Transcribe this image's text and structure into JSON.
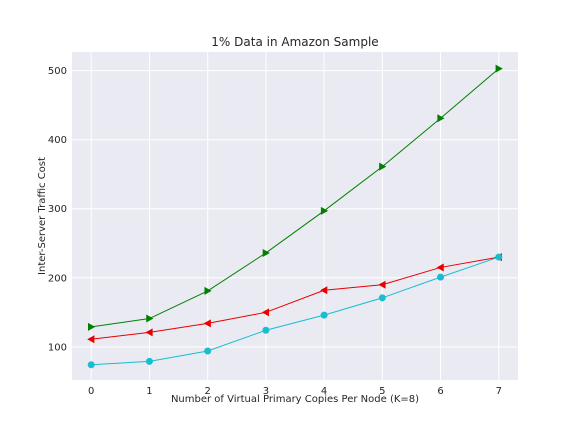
{
  "chart_data": {
    "type": "line",
    "title": "1% Data in Amazon Sample",
    "xlabel": "Number of Virtual Primary Copies Per Node (K=8)",
    "ylabel": "Inter-Server Traffic Cost",
    "x": [
      0,
      1,
      2,
      3,
      4,
      5,
      6,
      7
    ],
    "xlim": [
      -0.33,
      7.33
    ],
    "ylim": [
      52,
      527
    ],
    "xticks": [
      0,
      1,
      2,
      3,
      4,
      5,
      6,
      7
    ],
    "yticks": [
      100,
      200,
      300,
      400,
      500
    ],
    "grid": true,
    "series": [
      {
        "color": "#008000",
        "marker": "triangle-right",
        "values": [
          129,
          141,
          181,
          236,
          297,
          361,
          431,
          503
        ]
      },
      {
        "color": "#e80000",
        "marker": "triangle-left",
        "values": [
          111,
          121,
          134,
          150,
          182,
          190,
          215,
          230
        ]
      },
      {
        "color": "#17becf",
        "marker": "circle",
        "values": [
          74,
          79,
          94,
          124,
          146,
          171,
          201,
          230
        ]
      }
    ]
  }
}
